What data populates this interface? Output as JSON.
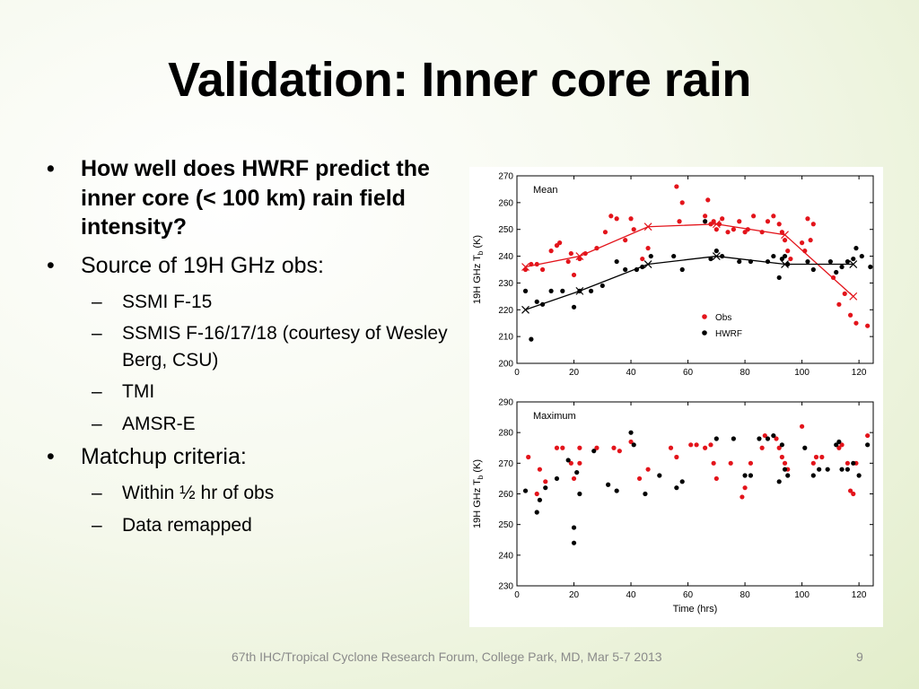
{
  "slide": {
    "title": "Validation: Inner core rain",
    "footer": "67th IHC/Tropical Cyclone Research Forum, College Park, MD, Mar 5-7 2013",
    "page_number": "9"
  },
  "bullets": [
    {
      "text": "How well does HWRF predict the inner core (< 100 km) rain field intensity?"
    },
    {
      "text": "Source of 19H GHz obs:",
      "sub": [
        "SSMI F-15",
        "SSMIS F-16/17/18 (courtesy of Wesley Berg, CSU)",
        "TMI",
        "AMSR-E"
      ]
    },
    {
      "text": "Matchup criteria:",
      "sub": [
        "Within ½ hr of obs",
        "Data remapped"
      ]
    }
  ],
  "chart_data": [
    {
      "type": "scatter",
      "panel_label": "Mean",
      "ylabel": "19H GHz T_b (K)",
      "xlabel": "",
      "xlim": [
        0,
        125
      ],
      "ylim": [
        200,
        270
      ],
      "xticks": [
        0,
        20,
        40,
        60,
        80,
        100,
        120
      ],
      "yticks": [
        200,
        210,
        220,
        230,
        240,
        250,
        260,
        270
      ],
      "legend": {
        "position": "lower-right",
        "entries": [
          "Obs",
          "HWRF"
        ]
      },
      "series": [
        {
          "name": "Obs",
          "color": "#e3141b",
          "points": [
            [
              3,
              235
            ],
            [
              5,
              237
            ],
            [
              7,
              237
            ],
            [
              9,
              235
            ],
            [
              12,
              242
            ],
            [
              14,
              244
            ],
            [
              15,
              245
            ],
            [
              18,
              238
            ],
            [
              19,
              241
            ],
            [
              20,
              233
            ],
            [
              22,
              239
            ],
            [
              24,
              241
            ],
            [
              28,
              243
            ],
            [
              31,
              249
            ],
            [
              33,
              255
            ],
            [
              35,
              254
            ],
            [
              38,
              246
            ],
            [
              40,
              254
            ],
            [
              41,
              250
            ],
            [
              44,
              239
            ],
            [
              46,
              243
            ],
            [
              56,
              266
            ],
            [
              57,
              253
            ],
            [
              58,
              260
            ],
            [
              66,
              255
            ],
            [
              67,
              261
            ],
            [
              68,
              252
            ],
            [
              69,
              253
            ],
            [
              70,
              250
            ],
            [
              71,
              252
            ],
            [
              72,
              254
            ],
            [
              74,
              249
            ],
            [
              76,
              250
            ],
            [
              78,
              253
            ],
            [
              80,
              249
            ],
            [
              81,
              250
            ],
            [
              83,
              255
            ],
            [
              86,
              249
            ],
            [
              88,
              253
            ],
            [
              90,
              255
            ],
            [
              92,
              252
            ],
            [
              93,
              249
            ],
            [
              94,
              246
            ],
            [
              95,
              242
            ],
            [
              96,
              239
            ],
            [
              100,
              245
            ],
            [
              101,
              242
            ],
            [
              102,
              254
            ],
            [
              103,
              246
            ],
            [
              104,
              252
            ],
            [
              111,
              232
            ],
            [
              113,
              222
            ],
            [
              115,
              226
            ],
            [
              117,
              218
            ],
            [
              119,
              215
            ],
            [
              123,
              214
            ]
          ]
        },
        {
          "name": "HWRF",
          "color": "#000000",
          "points": [
            [
              3,
              227
            ],
            [
              5,
              209
            ],
            [
              7,
              223
            ],
            [
              9,
              222
            ],
            [
              12,
              227
            ],
            [
              16,
              227
            ],
            [
              20,
              221
            ],
            [
              22,
              227
            ],
            [
              26,
              227
            ],
            [
              30,
              229
            ],
            [
              35,
              238
            ],
            [
              38,
              235
            ],
            [
              42,
              235
            ],
            [
              44,
              236
            ],
            [
              47,
              240
            ],
            [
              55,
              240
            ],
            [
              58,
              235
            ],
            [
              66,
              253
            ],
            [
              68,
              239
            ],
            [
              70,
              242
            ],
            [
              72,
              240
            ],
            [
              78,
              238
            ],
            [
              82,
              238
            ],
            [
              88,
              238
            ],
            [
              90,
              240
            ],
            [
              92,
              232
            ],
            [
              93,
              239
            ],
            [
              94,
              240
            ],
            [
              95,
              237
            ],
            [
              102,
              238
            ],
            [
              104,
              235
            ],
            [
              110,
              238
            ],
            [
              112,
              234
            ],
            [
              114,
              236
            ],
            [
              116,
              238
            ],
            [
              118,
              239
            ],
            [
              119,
              243
            ],
            [
              121,
              240
            ],
            [
              124,
              236
            ]
          ]
        }
      ],
      "lines": [
        {
          "name": "Obs",
          "color": "#e3141b",
          "points": [
            [
              3,
              236
            ],
            [
              22,
              240
            ],
            [
              46,
              251
            ],
            [
              70,
              252
            ],
            [
              94,
              248
            ],
            [
              118,
              225
            ]
          ]
        },
        {
          "name": "HWRF",
          "color": "#000000",
          "points": [
            [
              3,
              220
            ],
            [
              22,
              227
            ],
            [
              46,
              237
            ],
            [
              70,
              240
            ],
            [
              94,
              237
            ],
            [
              118,
              237
            ]
          ]
        }
      ]
    },
    {
      "type": "scatter",
      "panel_label": "Maximum",
      "ylabel": "19H GHz T_b (K)",
      "xlabel": "Time (hrs)",
      "xlim": [
        0,
        125
      ],
      "ylim": [
        230,
        290
      ],
      "xticks": [
        0,
        20,
        40,
        60,
        80,
        100,
        120
      ],
      "yticks": [
        230,
        240,
        250,
        260,
        270,
        280,
        290
      ],
      "series": [
        {
          "name": "Obs",
          "color": "#e3141b",
          "points": [
            [
              4,
              272
            ],
            [
              7,
              260
            ],
            [
              8,
              268
            ],
            [
              10,
              264
            ],
            [
              14,
              275
            ],
            [
              16,
              275
            ],
            [
              19,
              270
            ],
            [
              20,
              265
            ],
            [
              22,
              275
            ],
            [
              22,
              270
            ],
            [
              28,
              275
            ],
            [
              34,
              275
            ],
            [
              36,
              274
            ],
            [
              40,
              277
            ],
            [
              43,
              265
            ],
            [
              46,
              268
            ],
            [
              54,
              275
            ],
            [
              56,
              272
            ],
            [
              61,
              276
            ],
            [
              63,
              276
            ],
            [
              66,
              275
            ],
            [
              68,
              276
            ],
            [
              69,
              270
            ],
            [
              70,
              265
            ],
            [
              75,
              270
            ],
            [
              79,
              259
            ],
            [
              80,
              262
            ],
            [
              82,
              270
            ],
            [
              86,
              275
            ],
            [
              87,
              279
            ],
            [
              91,
              278
            ],
            [
              92,
              275
            ],
            [
              93,
              272
            ],
            [
              94,
              270
            ],
            [
              95,
              268
            ],
            [
              100,
              282
            ],
            [
              104,
              270
            ],
            [
              105,
              272
            ],
            [
              107,
              272
            ],
            [
              113,
              275
            ],
            [
              114,
              276
            ],
            [
              116,
              270
            ],
            [
              117,
              261
            ],
            [
              118,
              260
            ],
            [
              119,
              270
            ],
            [
              123,
              279
            ]
          ]
        },
        {
          "name": "HWRF",
          "color": "#000000",
          "points": [
            [
              3,
              261
            ],
            [
              7,
              254
            ],
            [
              8,
              258
            ],
            [
              10,
              262
            ],
            [
              14,
              265
            ],
            [
              18,
              271
            ],
            [
              20,
              249
            ],
            [
              20,
              244
            ],
            [
              21,
              267
            ],
            [
              22,
              260
            ],
            [
              27,
              274
            ],
            [
              32,
              263
            ],
            [
              35,
              261
            ],
            [
              40,
              280
            ],
            [
              41,
              276
            ],
            [
              45,
              260
            ],
            [
              50,
              266
            ],
            [
              56,
              262
            ],
            [
              58,
              264
            ],
            [
              70,
              278
            ],
            [
              76,
              278
            ],
            [
              80,
              266
            ],
            [
              82,
              266
            ],
            [
              85,
              278
            ],
            [
              88,
              278
            ],
            [
              90,
              279
            ],
            [
              92,
              264
            ],
            [
              93,
              276
            ],
            [
              94,
              268
            ],
            [
              95,
              266
            ],
            [
              101,
              275
            ],
            [
              104,
              266
            ],
            [
              106,
              268
            ],
            [
              109,
              268
            ],
            [
              112,
              276
            ],
            [
              113,
              277
            ],
            [
              114,
              268
            ],
            [
              116,
              268
            ],
            [
              118,
              270
            ],
            [
              120,
              266
            ],
            [
              123,
              276
            ]
          ]
        }
      ]
    }
  ]
}
